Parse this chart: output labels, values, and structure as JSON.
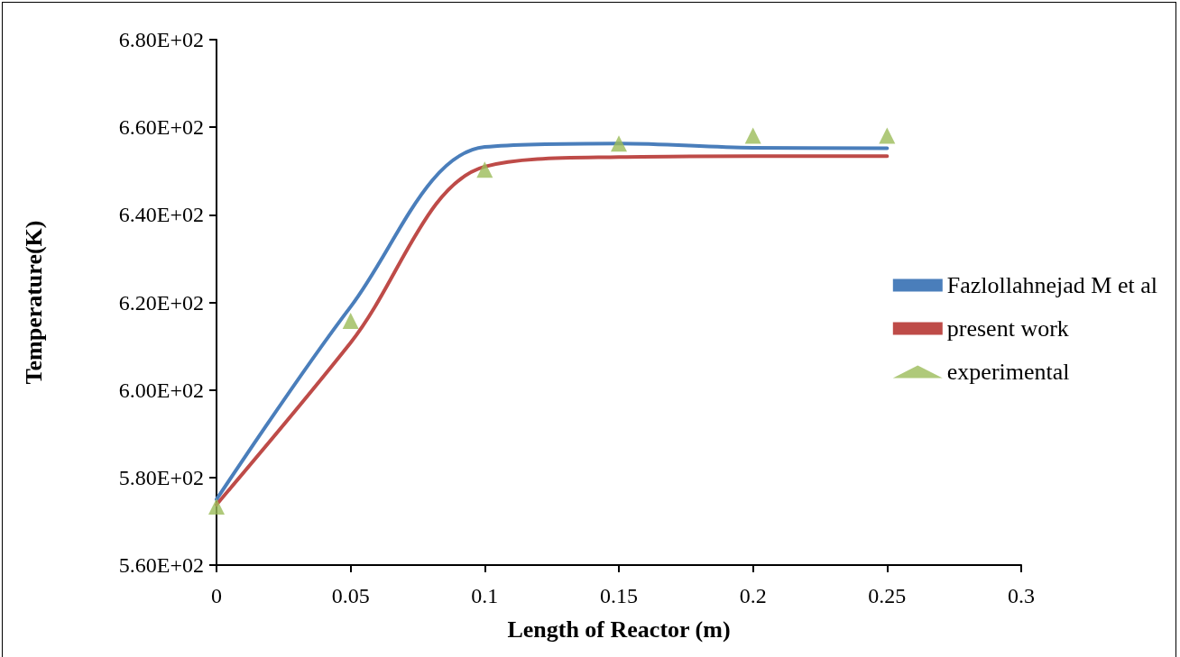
{
  "chart_data": {
    "type": "line",
    "xlabel": "Length of Reactor (m)",
    "ylabel": "Temperature(K)",
    "x": [
      0,
      0.05,
      0.1,
      0.15,
      0.2,
      0.25
    ],
    "series": [
      {
        "name": "Fazlollahnejad M et al",
        "color": "#4a7ebb",
        "values": [
          575,
          619,
          655.5,
          656.3,
          655.3,
          655.2
        ]
      },
      {
        "name": "present work",
        "color": "#be4b48",
        "values": [
          573.8,
          610.8,
          651,
          653.2,
          653.4,
          653.4
        ]
      },
      {
        "name": "experimental",
        "type": "scatter",
        "marker": "triangle",
        "color": "#9bbb59",
        "values": [
          573.4,
          615.8,
          650.3,
          656.3,
          658.1,
          658.1
        ]
      }
    ],
    "xlim": [
      0,
      0.3
    ],
    "xticks": [
      0,
      0.05,
      0.1,
      0.15,
      0.2,
      0.25,
      0.3
    ],
    "ylim": [
      560,
      680
    ],
    "yticks": [
      {
        "value": 560,
        "label": "5.60E+02"
      },
      {
        "value": 580,
        "label": "5.80E+02"
      },
      {
        "value": 600,
        "label": "6.00E+02"
      },
      {
        "value": 620,
        "label": "6.20E+02"
      },
      {
        "value": 640,
        "label": "6.40E+02"
      },
      {
        "value": 660,
        "label": "6.60E+02"
      },
      {
        "value": 680,
        "label": "6.80E+02"
      }
    ],
    "grid": false,
    "legend": "right"
  }
}
